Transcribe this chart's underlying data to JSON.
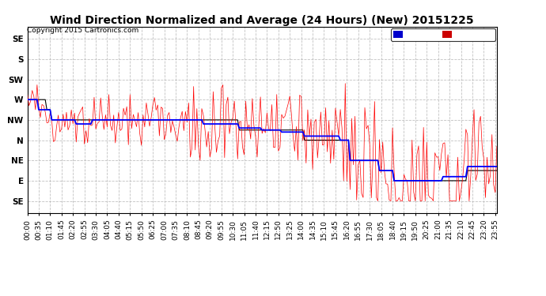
{
  "title": "Wind Direction Normalized and Average (24 Hours) (New) 20151225",
  "copyright": "Copyright 2015 Cartronics.com",
  "background_color": "#ffffff",
  "plot_bg_color": "#ffffff",
  "grid_color": "#bbbbbb",
  "y_labels": [
    "SE",
    "E",
    "NE",
    "N",
    "NW",
    "W",
    "SW",
    "S",
    "SE"
  ],
  "y_values": [
    8,
    7,
    6,
    5,
    4,
    3,
    2,
    1,
    0
  ],
  "legend_avg_color": "#0000cc",
  "legend_dir_color": "#cc0000",
  "line_avg_color": "#0000ff",
  "line_dir_color": "#ff0000",
  "line_black_color": "#000000",
  "title_fontsize": 10,
  "tick_fontsize": 6.5
}
